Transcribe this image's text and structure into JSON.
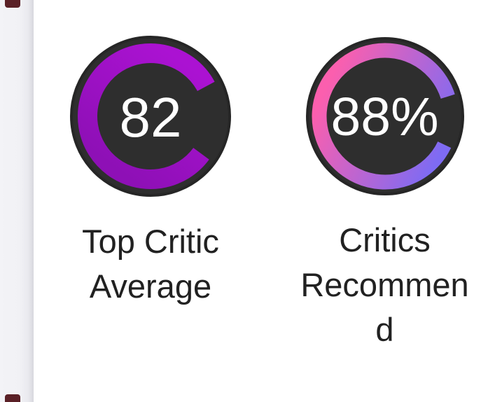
{
  "colors": {
    "page_background": "#ffffff",
    "rail_background": "#f2f2f6",
    "rail_edge_shadow": "#d7d7de",
    "card_fragment_red": "#5a2026",
    "gauge_track": "#2e2e2e",
    "gauge_rim": "#262626",
    "gauge_value_text": "#ffffff",
    "label_text": "#212121"
  },
  "gauges": [
    {
      "value": "82",
      "percent": 82,
      "label": "Top Critic Average",
      "label_lines": [
        "Top Critic",
        "Average"
      ],
      "ring_colors": [
        "#ab12d2",
        "#8e10b6"
      ],
      "ring_gradient_direction": "vertical"
    },
    {
      "value": "88%",
      "percent": 88,
      "label": "Critics Recommend",
      "label_lines": [
        "Critics",
        "Recommen",
        "d"
      ],
      "ring_colors": [
        "#fb5fae",
        "#7e6bf3"
      ],
      "ring_gradient_direction": "horizontal"
    }
  ]
}
